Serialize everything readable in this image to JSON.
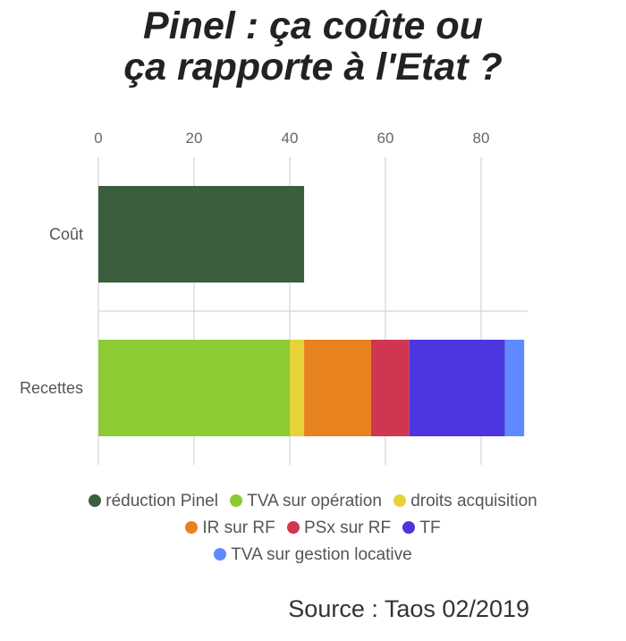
{
  "title_lines": [
    "Pinel : ça coûte ou",
    "ça rapporte à l'Etat ?"
  ],
  "source": "Source : Taos 02/2019",
  "chart_data": {
    "type": "bar",
    "orientation": "horizontal",
    "stacked": true,
    "categories": [
      "Coût",
      "Recettes"
    ],
    "x_ticks": [
      0,
      20,
      40,
      60,
      80
    ],
    "xlim": [
      0,
      90
    ],
    "grid": true,
    "legend_position": "bottom",
    "series": [
      {
        "name": "réduction Pinel",
        "color": "#3b5e3f",
        "values": [
          43,
          0
        ]
      },
      {
        "name": "TVA sur opération",
        "color": "#8dcb35",
        "values": [
          0,
          40
        ]
      },
      {
        "name": "droits acquisition",
        "color": "#e8d23a",
        "values": [
          0,
          3
        ]
      },
      {
        "name": "IR sur RF",
        "color": "#e7821f",
        "values": [
          0,
          14
        ]
      },
      {
        "name": "PSx sur RF",
        "color": "#d03652",
        "values": [
          0,
          8
        ]
      },
      {
        "name": "TF",
        "color": "#4b36e0",
        "values": [
          0,
          20
        ]
      },
      {
        "name": "TVA sur gestion locative",
        "color": "#5f8aff",
        "values": [
          0,
          4
        ]
      }
    ]
  }
}
